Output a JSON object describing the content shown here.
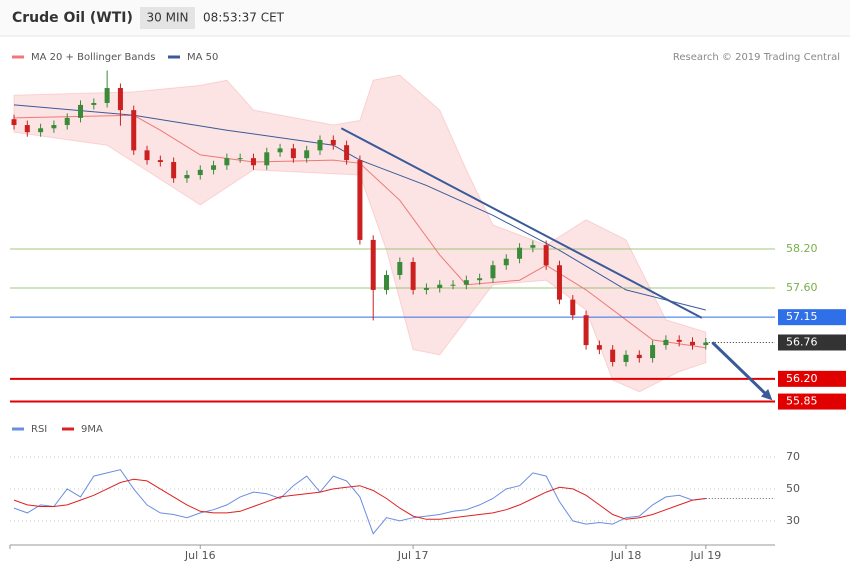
{
  "header": {
    "title": "Crude Oil (WTI)",
    "timeframe": "30 MIN",
    "time": "08:53:37 CET"
  },
  "credit": "Research © 2019 Trading Central",
  "chart_data": [
    {
      "type": "candlestick",
      "xlim": [
        -0.3,
        57.2
      ],
      "ylim": [
        55.72,
        61.42
      ],
      "up_color": "#3a8a3a",
      "down_color": "#cc2020",
      "candles": {
        "open": [
          60.2,
          60.11,
          60.0,
          60.06,
          60.11,
          60.22,
          60.42,
          60.45,
          60.68,
          60.34,
          59.72,
          59.57,
          59.54,
          59.29,
          59.34,
          59.42,
          59.49,
          59.6,
          59.6,
          59.49,
          59.69,
          59.75,
          59.6,
          59.72,
          59.88,
          59.8,
          59.57,
          58.34,
          57.57,
          57.8,
          58.0,
          57.57,
          57.6,
          57.65,
          57.65,
          57.72,
          57.75,
          57.95,
          58.05,
          58.22,
          58.26,
          57.95,
          57.42,
          57.18,
          56.72,
          56.65,
          56.46,
          56.57,
          56.52,
          56.72,
          56.8,
          56.77,
          56.72
        ],
        "high": [
          60.27,
          60.18,
          60.13,
          60.18,
          60.29,
          60.49,
          60.52,
          60.95,
          60.75,
          60.41,
          59.79,
          59.64,
          59.61,
          59.41,
          59.49,
          59.56,
          59.67,
          59.67,
          59.67,
          59.76,
          59.82,
          59.82,
          59.79,
          59.95,
          59.95,
          59.87,
          59.64,
          58.41,
          57.87,
          58.07,
          58.07,
          57.67,
          57.72,
          57.72,
          57.79,
          57.82,
          58.02,
          58.12,
          58.29,
          58.33,
          58.33,
          58.02,
          57.49,
          57.25,
          56.79,
          56.72,
          56.64,
          56.64,
          56.79,
          56.87,
          56.87,
          56.84,
          56.83
        ],
        "low": [
          60.04,
          59.93,
          59.93,
          59.99,
          60.04,
          60.15,
          60.35,
          60.38,
          60.1,
          59.65,
          59.5,
          59.47,
          59.22,
          59.22,
          59.27,
          59.35,
          59.42,
          59.53,
          59.42,
          59.42,
          59.62,
          59.53,
          59.53,
          59.65,
          59.73,
          59.5,
          58.27,
          57.1,
          57.5,
          57.73,
          57.5,
          57.5,
          57.53,
          57.58,
          57.58,
          57.65,
          57.68,
          57.88,
          57.98,
          58.15,
          57.88,
          57.35,
          57.11,
          56.65,
          56.58,
          56.39,
          56.39,
          56.45,
          56.45,
          56.65,
          56.7,
          56.65,
          56.65
        ],
        "close": [
          60.11,
          60.0,
          60.06,
          60.11,
          60.22,
          60.42,
          60.45,
          60.68,
          60.34,
          59.72,
          59.57,
          59.54,
          59.29,
          59.34,
          59.42,
          59.49,
          59.6,
          59.6,
          59.49,
          59.69,
          59.75,
          59.6,
          59.72,
          59.88,
          59.8,
          59.57,
          58.34,
          57.57,
          57.8,
          58.0,
          57.57,
          57.6,
          57.65,
          57.65,
          57.72,
          57.75,
          57.95,
          58.05,
          58.22,
          58.26,
          57.95,
          57.42,
          57.18,
          56.72,
          56.65,
          56.46,
          56.57,
          56.52,
          56.72,
          56.8,
          56.77,
          56.72,
          56.76
        ]
      },
      "series": [
        {
          "name": "MA 20 + Bollinger Bands",
          "color": "#f07878",
          "x": [
            0,
            9,
            11,
            14,
            18,
            24,
            26,
            29,
            32,
            34,
            38,
            40,
            43,
            46,
            48,
            52
          ],
          "values": [
            60.22,
            60.26,
            60.03,
            59.65,
            59.54,
            59.57,
            59.52,
            58.95,
            58.11,
            57.65,
            57.72,
            57.95,
            57.57,
            57.11,
            56.8,
            56.68
          ],
          "bands": {
            "upper": {
              "x": [
                0,
                9,
                14,
                16,
                18,
                24,
                26,
                27,
                29,
                32,
                34,
                36,
                40,
                43,
                46,
                49,
                52
              ],
              "values": [
                60.57,
                60.62,
                60.72,
                60.8,
                60.34,
                60.11,
                60.18,
                60.8,
                60.88,
                60.34,
                59.42,
                58.57,
                58.26,
                58.65,
                58.34,
                57.11,
                56.92
              ]
            },
            "lower": {
              "x": [
                0,
                7,
                14,
                18,
                26,
                28,
                30,
                32,
                34,
                36,
                40,
                43,
                45,
                47,
                50,
                52
              ],
              "values": [
                60.0,
                59.8,
                58.88,
                59.42,
                59.34,
                58.18,
                56.65,
                56.57,
                57.11,
                57.65,
                57.72,
                57.26,
                56.18,
                56.0,
                56.31,
                56.45
              ]
            }
          }
        },
        {
          "name": "MA 50",
          "color": "#3a5a9a",
          "x": [
            0,
            9,
            16,
            24,
            26,
            31,
            36,
            41,
            46,
            52
          ],
          "values": [
            60.42,
            60.26,
            60.03,
            59.8,
            59.57,
            59.18,
            58.72,
            58.18,
            57.57,
            57.26
          ]
        }
      ],
      "levels": [
        {
          "value": 58.2,
          "label": "58.20",
          "color": "#7ab04a",
          "line": "solid",
          "box": false
        },
        {
          "value": 57.6,
          "label": "57.60",
          "color": "#7ab04a",
          "line": "solid",
          "box": false
        },
        {
          "value": 57.15,
          "label": "57.15",
          "color": "#2f6fe8",
          "line": "solid",
          "box": true
        },
        {
          "value": 56.76,
          "label": "56.76",
          "color": "#333333",
          "line": "dotted",
          "box": true
        },
        {
          "value": 56.2,
          "label": "56.20",
          "color": "#e00000",
          "line": "thick",
          "box": true
        },
        {
          "value": 55.85,
          "label": "55.85",
          "color": "#e00000",
          "line": "thick",
          "box": true
        }
      ],
      "trend_line": {
        "color": "#3a5a9a",
        "x": [
          24.6,
          51.7
        ],
        "y": [
          60.06,
          57.14
        ]
      },
      "arrow": {
        "color": "#3a5a9a",
        "x": [
          52.5,
          57.0
        ],
        "y": [
          56.76,
          55.87
        ]
      }
    },
    {
      "type": "line",
      "xlim": [
        -0.3,
        57.2
      ],
      "ylim": [
        16.2,
        80.6
      ],
      "yticks": [
        30,
        50,
        70
      ],
      "grid": true,
      "xticks": [
        {
          "value": 14,
          "label": "Jul 16"
        },
        {
          "value": 30,
          "label": "Jul 17"
        },
        {
          "value": 46,
          "label": "Jul 18"
        },
        {
          "value": 52,
          "label": "Jul 19"
        }
      ],
      "series": [
        {
          "name": "RSI",
          "color": "#6a8ee0",
          "values": [
            38,
            35,
            40,
            39,
            50,
            45,
            58,
            60,
            62,
            50,
            40,
            35,
            34,
            32,
            35,
            37,
            40,
            45,
            48,
            47,
            44,
            52,
            58,
            48,
            58,
            55,
            45,
            22,
            32,
            30,
            32,
            33,
            34,
            36,
            37,
            40,
            44,
            50,
            52,
            60,
            58,
            42,
            30,
            28,
            29,
            28,
            32,
            33,
            40,
            45,
            46,
            43,
            44
          ]
        },
        {
          "name": "9MA",
          "color": "#e02020",
          "values": [
            43,
            40,
            39,
            39,
            40,
            43,
            46,
            50,
            54,
            56,
            55,
            50,
            45,
            40,
            36,
            35,
            35,
            36,
            39,
            42,
            45,
            46,
            47,
            48,
            50,
            51,
            52,
            49,
            44,
            38,
            33,
            31,
            31,
            32,
            33,
            34,
            35,
            37,
            40,
            44,
            48,
            51,
            50,
            46,
            40,
            34,
            31,
            32,
            34,
            37,
            40,
            43,
            44
          ]
        }
      ]
    }
  ]
}
